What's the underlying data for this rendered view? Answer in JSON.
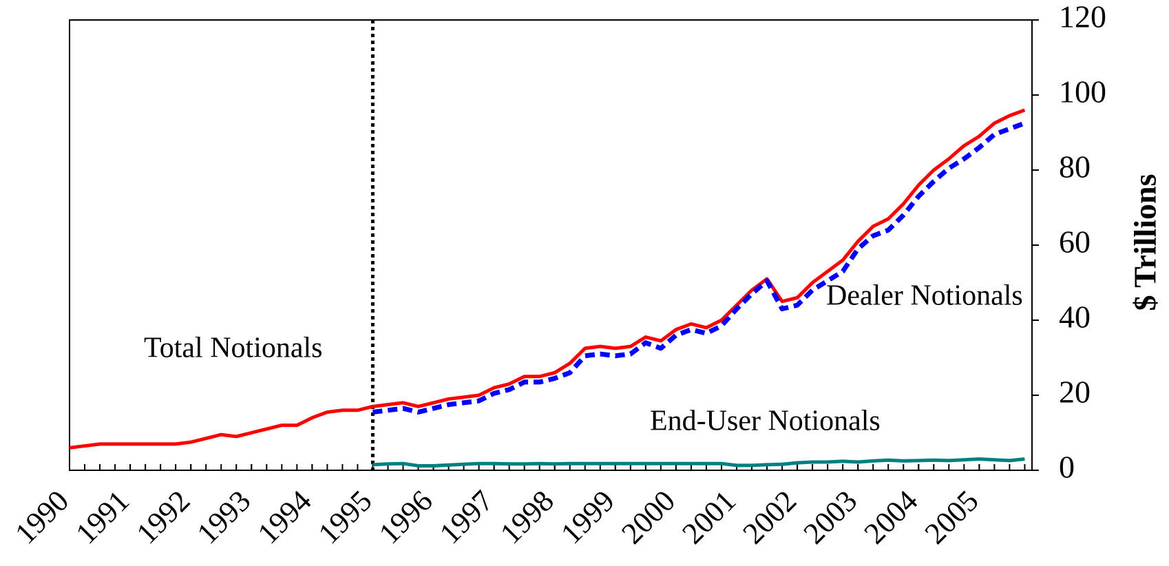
{
  "chart_data": {
    "type": "line",
    "y_label": "$ Trillions",
    "annotations": [
      "Total Notionals",
      "Dealer Notionals",
      "End-User Notionals"
    ],
    "x": [
      1990,
      1990.25,
      1990.5,
      1990.75,
      1991,
      1991.25,
      1991.5,
      1991.75,
      1992,
      1992.25,
      1992.5,
      1992.75,
      1993,
      1993.25,
      1993.5,
      1993.75,
      1994,
      1994.25,
      1994.5,
      1994.75,
      1995,
      1995.25,
      1995.5,
      1995.75,
      1996,
      1996.25,
      1996.5,
      1996.75,
      1997,
      1997.25,
      1997.5,
      1997.75,
      1998,
      1998.25,
      1998.5,
      1998.75,
      1999,
      1999.25,
      1999.5,
      1999.75,
      2000,
      2000.25,
      2000.5,
      2000.75,
      2001,
      2001.25,
      2001.5,
      2001.75,
      2002,
      2002.25,
      2002.5,
      2002.75,
      2003,
      2003.25,
      2003.5,
      2003.75,
      2004,
      2004.25,
      2004.5,
      2004.75,
      2005,
      2005.25,
      2005.5,
      2005.75
    ],
    "series": [
      {
        "color": "#ff0000",
        "line_style": "solid",
        "values": [
          6,
          6.5,
          7,
          7,
          7,
          7,
          7,
          7,
          7.5,
          8.5,
          9.5,
          9,
          10,
          11,
          12,
          12,
          14,
          15.5,
          16,
          16,
          17,
          17.5,
          18,
          17,
          18,
          19,
          19.5,
          20,
          22,
          23,
          25,
          25,
          26,
          28.5,
          32.5,
          33,
          32.5,
          33,
          35.5,
          34.5,
          37.5,
          39,
          38,
          40,
          44,
          48,
          51,
          45,
          46,
          50,
          53,
          56,
          61,
          65,
          67,
          71,
          76,
          80,
          83,
          86.5,
          89,
          92.5,
          94.5,
          96
        ]
      },
      {
        "color": "#0000ff",
        "line_style": "dashed",
        "values": [
          null,
          null,
          null,
          null,
          null,
          null,
          null,
          null,
          null,
          null,
          null,
          null,
          null,
          null,
          null,
          null,
          null,
          null,
          null,
          null,
          15.5,
          16,
          16.5,
          15.5,
          16.5,
          17.5,
          18,
          18.5,
          20.5,
          21.5,
          23.5,
          23.5,
          24.5,
          26,
          30.5,
          31,
          30.5,
          31,
          34,
          32.5,
          36,
          37.5,
          36.5,
          38.5,
          43,
          47,
          50.5,
          43,
          44,
          48,
          50.5,
          53,
          59,
          62.5,
          64,
          68,
          73,
          77,
          80.5,
          83,
          86,
          89.5,
          91,
          92.5
        ]
      },
      {
        "color": "#008080",
        "line_style": "solid",
        "values": [
          null,
          null,
          null,
          null,
          null,
          null,
          null,
          null,
          null,
          null,
          null,
          null,
          null,
          null,
          null,
          null,
          null,
          null,
          null,
          null,
          1.5,
          1.7,
          1.8,
          1.2,
          1.2,
          1.4,
          1.6,
          1.8,
          1.8,
          1.7,
          1.7,
          1.8,
          1.7,
          1.8,
          1.8,
          1.8,
          1.8,
          1.8,
          1.8,
          1.8,
          1.8,
          1.8,
          1.8,
          1.8,
          1.3,
          1.3,
          1.5,
          1.6,
          2,
          2.2,
          2.2,
          2.4,
          2.2,
          2.5,
          2.7,
          2.5,
          2.6,
          2.7,
          2.6,
          2.8,
          3,
          2.8,
          2.6,
          3
        ]
      }
    ],
    "vline_x": 1995,
    "xlim": [
      1990,
      2005.87
    ],
    "xticks": [
      1990,
      1991,
      1992,
      1993,
      1994,
      1995,
      1996,
      1997,
      1998,
      1999,
      2000,
      2001,
      2002,
      2003,
      2004,
      2005
    ],
    "minor_tick_step": 0.25,
    "ylim": [
      0,
      120
    ],
    "yticks": [
      0,
      20,
      40,
      60,
      80,
      100,
      120
    ],
    "y_axis_side": "right",
    "grid": false
  }
}
